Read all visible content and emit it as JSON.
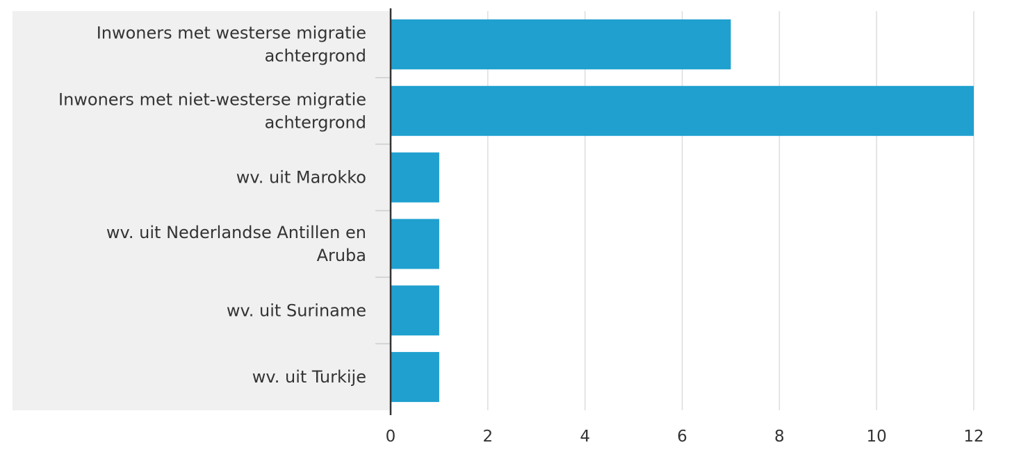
{
  "chart_data": {
    "type": "bar",
    "orientation": "horizontal",
    "categories": [
      [
        "Inwoners met westerse migratie",
        "achtergrond"
      ],
      [
        "Inwoners met niet-westerse migratie",
        "achtergrond"
      ],
      [
        "wv. uit Marokko"
      ],
      [
        "wv. uit Nederlandse Antillen en",
        "Aruba"
      ],
      [
        "wv. uit Suriname"
      ],
      [
        "wv. uit Turkije"
      ]
    ],
    "values": [
      7,
      12,
      1,
      1,
      1,
      1
    ],
    "xticks": [
      "0",
      "2",
      "4",
      "6",
      "8",
      "10",
      "12"
    ],
    "xlim": [
      0,
      12
    ],
    "grid": true,
    "colors": {
      "bar": "#1fa0cf",
      "label_panel": "#f0f0f0",
      "grid": "#dddddd",
      "axis": "#333333"
    }
  }
}
